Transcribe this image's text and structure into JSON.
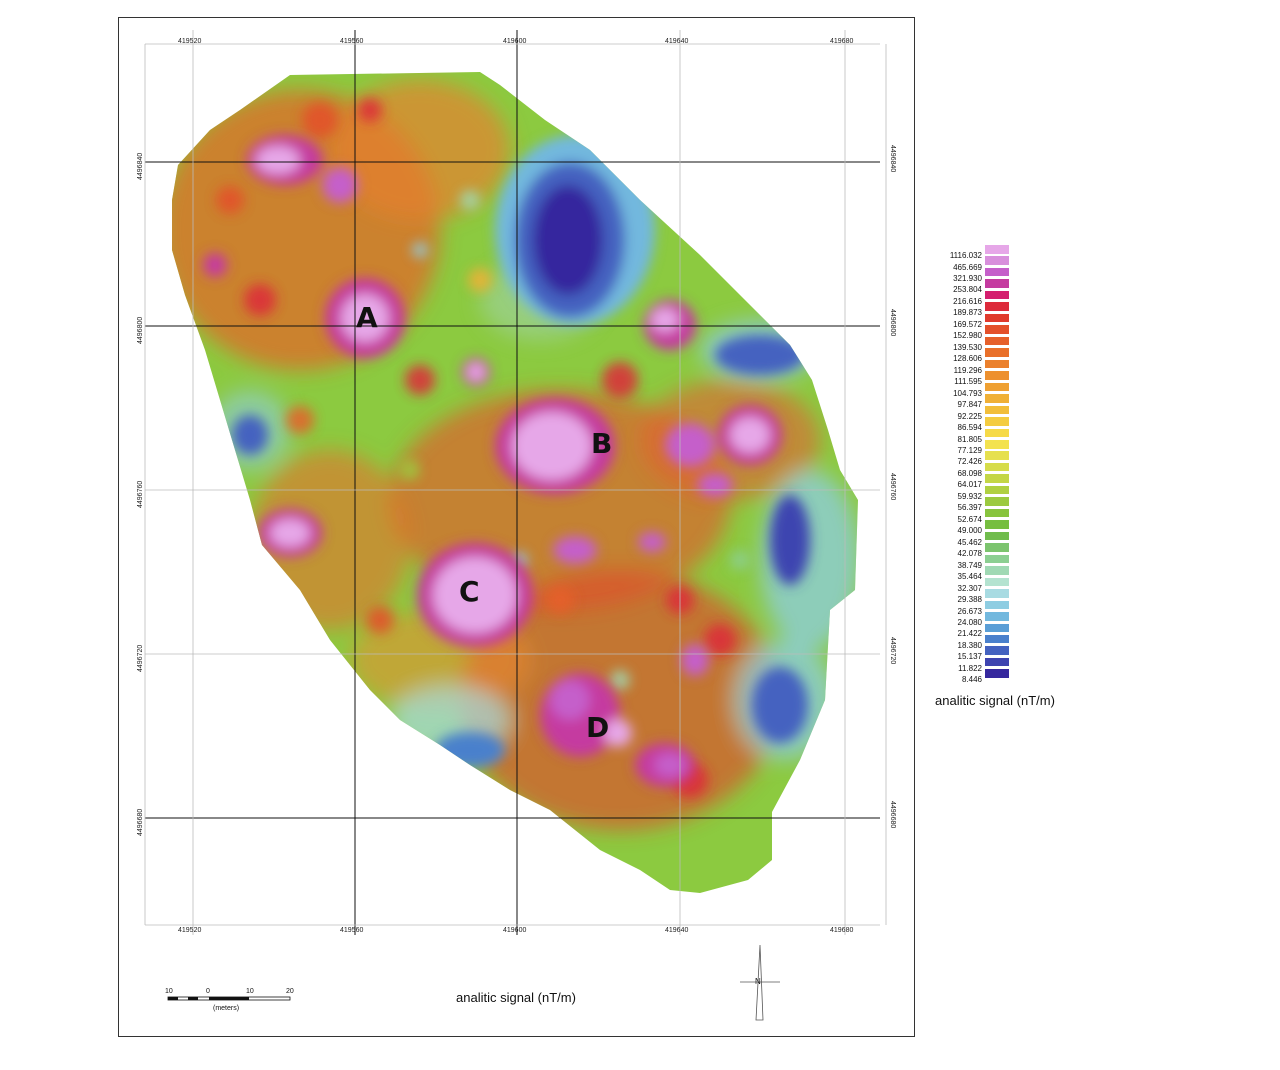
{
  "map": {
    "bottom_title": "analitic signal (nT/m)",
    "x_ticks": [
      "419520",
      "419560",
      "419600",
      "419640",
      "419680"
    ],
    "y_ticks": [
      "4496840",
      "4496800",
      "4496760",
      "4496720",
      "4496680"
    ],
    "anomalies": [
      "A",
      "B",
      "C",
      "D"
    ],
    "scale_bar": {
      "labels": [
        "10",
        "0",
        "10",
        "20"
      ],
      "unit": "(meters)"
    },
    "north_arrow": {
      "label": "N",
      "icon": "north-arrow-icon"
    }
  },
  "legend": {
    "title": "analitic signal (nT/m)",
    "values": [
      "1116.032",
      "465.669",
      "321.930",
      "253.804",
      "216.616",
      "189.873",
      "169.572",
      "152.980",
      "139.530",
      "128.606",
      "119.296",
      "111.595",
      "104.793",
      "97.847",
      "92.225",
      "86.594",
      "81.805",
      "77.129",
      "72.426",
      "68.098",
      "64.017",
      "59.932",
      "56.397",
      "52.674",
      "49.000",
      "45.462",
      "42.078",
      "38.749",
      "35.464",
      "32.307",
      "29.388",
      "26.673",
      "24.080",
      "21.422",
      "18.380",
      "15.137",
      "11.822",
      "8.446"
    ],
    "colors": [
      "#e6a7e8",
      "#d88fdc",
      "#c55fca",
      "#c53ba0",
      "#d41e6e",
      "#dd2a3a",
      "#e03a2c",
      "#e4502a",
      "#e6602a",
      "#e9702a",
      "#eb802c",
      "#ed902e",
      "#efa032",
      "#f0b036",
      "#f2be3a",
      "#f4cc40",
      "#f6da48",
      "#f3e24e",
      "#e6e04e",
      "#d6dc4a",
      "#c4d646",
      "#b0d042",
      "#9cca40",
      "#88c43e",
      "#76be40",
      "#70bc4c",
      "#7cc46e",
      "#8ccf92",
      "#a0d9b4",
      "#b4e3d0",
      "#a8dbe2",
      "#8ecde2",
      "#72b8de",
      "#5a9ed6",
      "#4a80cc",
      "#4462c0",
      "#3e44b0",
      "#36289e"
    ]
  }
}
